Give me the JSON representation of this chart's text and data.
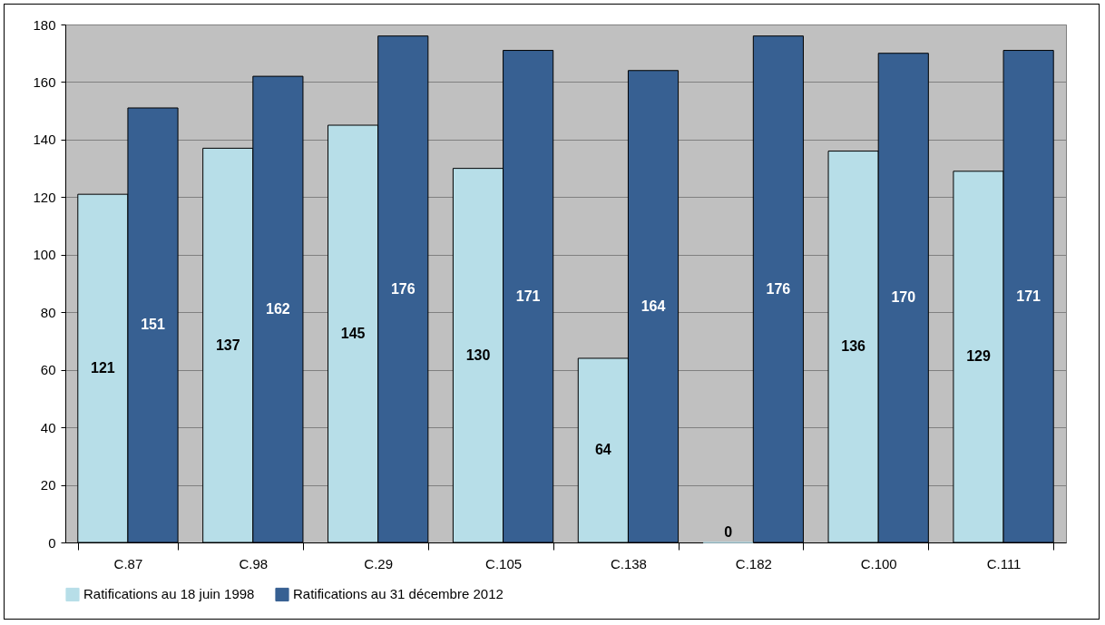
{
  "chart_data": {
    "type": "bar",
    "categories": [
      "C.87",
      "C.98",
      "C.29",
      "C.105",
      "C.138",
      "C.182",
      "C.100",
      "C.111"
    ],
    "series": [
      {
        "name": "Ratifications au 18 juin 1998",
        "color": "#b7dee8",
        "values": [
          121,
          137,
          145,
          130,
          64,
          0,
          136,
          129
        ]
      },
      {
        "name": "Ratifications au 31 décembre 2012",
        "color": "#376092",
        "values": [
          151,
          162,
          176,
          171,
          164,
          176,
          170,
          171
        ]
      }
    ],
    "ylim": [
      0,
      180
    ],
    "yticks": [
      0,
      20,
      40,
      60,
      80,
      100,
      120,
      140,
      160,
      180
    ],
    "grid": "y",
    "legend": "bottom",
    "data_labels": true
  }
}
